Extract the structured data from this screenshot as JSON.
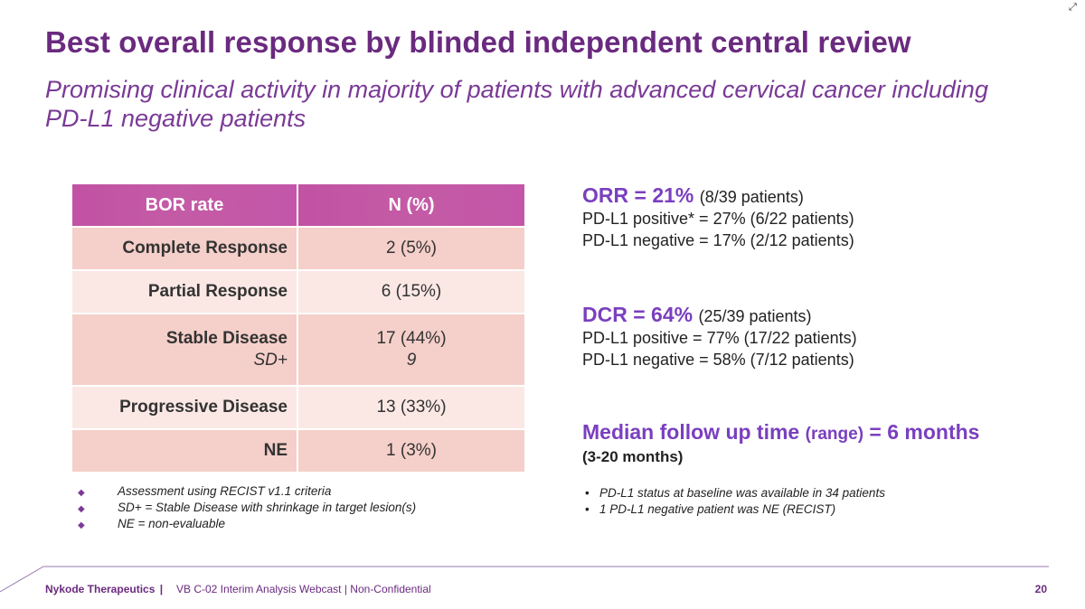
{
  "slide": {
    "title": "Best overall response by blinded independent central review",
    "subtitle": "Promising clinical activity in majority of patients with advanced cervical cancer including PD-L1 negative patients"
  },
  "table": {
    "headers": [
      "BOR rate",
      "N (%)"
    ],
    "rows": [
      {
        "label": "Complete Response",
        "value": "2 (5%)"
      },
      {
        "label": "Partial Response",
        "value": "6 (15%)"
      },
      {
        "label": "Stable Disease",
        "value": "17 (44%)",
        "sub_label": "SD+",
        "sub_value": "9"
      },
      {
        "label": "Progressive Disease",
        "value": "13 (33%)"
      },
      {
        "label": "NE",
        "value": "1 (3%)"
      }
    ]
  },
  "footnotes_left": [
    "Assessment using RECIST v1.1 criteria",
    "SD+ = Stable Disease with shrinkage in target lesion(s)",
    "NE = non-evaluable"
  ],
  "orr": {
    "head": "ORR = 21%",
    "paren": "(8/39 patients)",
    "lines": [
      "PD-L1 positive* = 27% (6/22 patients)",
      "PD-L1 negative = 17% (2/12 patients)"
    ]
  },
  "dcr": {
    "head": "DCR = 64%",
    "paren": "(25/39 patients)",
    "lines": [
      "PD-L1 positive = 77% (17/22 patients)",
      "PD-L1 negative = 58% (7/12 patients)"
    ]
  },
  "median": {
    "head_a": "Median follow up time",
    "head_b": "(range)",
    "head_c": "= 6 months",
    "range": "(3-20 months)"
  },
  "footnotes_right": [
    "PD-L1 status at baseline was available in 34 patients",
    "1 PD-L1 negative patient was NE (RECIST)"
  ],
  "footer": {
    "company": "Nykode Therapeutics",
    "separator": "|",
    "text": "VB C-02 Interim Analysis Webcast | Non-Confidential",
    "page": "20"
  },
  "colors": {
    "title": "#6a2a7f",
    "accent": "#7a3fbf",
    "table_header": "#c252a4",
    "row_dark": "#f5cfc9",
    "row_light": "#fbe8e5"
  },
  "icons": {
    "expand": "expand-icon",
    "diamond": "diamond-bullet-icon"
  }
}
